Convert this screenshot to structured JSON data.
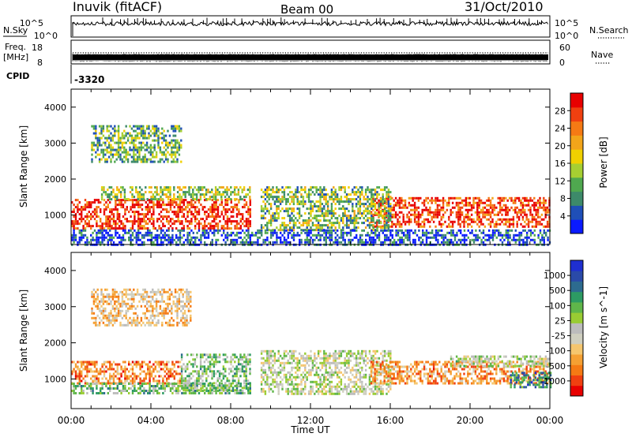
{
  "header": {
    "station": "Inuvik (fitACF)",
    "beam": "Beam 00",
    "date": "31/Oct/2010"
  },
  "strip_labels": {
    "nsky": "N.Sky",
    "nsearch": "N.Search",
    "freq_top": "Freq.",
    "freq_unit": "[MHz]",
    "nave": "Nave",
    "cpid": "CPID",
    "cpid_value": "-3320",
    "noise_tick_hi": "10^5",
    "noise_tick_lo": "10^0",
    "freq_tick_hi": "18",
    "freq_tick_lo": "8",
    "nave_tick_hi": "60",
    "nave_tick_lo": "0"
  },
  "axes": {
    "xlabel": "Time UT",
    "ylabel": "Slant Range [km]"
  },
  "colors": {
    "power": [
      "#0a1aff",
      "#1f4fb8",
      "#3d8a6a",
      "#4fa84f",
      "#a6cf32",
      "#f0d000",
      "#f2a51a",
      "#f57a14",
      "#f04010",
      "#e80000"
    ],
    "velocity": [
      "#e80000",
      "#f04010",
      "#f57a14",
      "#f5a033",
      "#f5c66e",
      "#cfcfbf",
      "#bcbcbc",
      "#99cc33",
      "#5fb64a",
      "#2d9b63",
      "#2d6b8f",
      "#2a4aa8",
      "#1f2fd0"
    ]
  },
  "chart_data": [
    {
      "type": "heatmap",
      "name": "power-panel",
      "xlabel": "Time UT",
      "ylabel": "Slant Range [km]",
      "x_ticks": [
        "00:00",
        "04:00",
        "08:00",
        "12:00",
        "16:00",
        "20:00",
        "00:00"
      ],
      "xlim": [
        0,
        24
      ],
      "ylim": [
        180,
        4500
      ],
      "y_ticks": [
        1000,
        2000,
        3000,
        4000
      ],
      "colorbar": {
        "label": "Power [dB]",
        "ticks": [
          "4",
          "8",
          "12",
          "16",
          "20",
          "24",
          "28"
        ],
        "range": [
          0,
          32
        ]
      },
      "scatter_bands": [
        {
          "t_start": 0.0,
          "t_end": 9.0,
          "r_min": 650,
          "r_max": 1450,
          "level": 0.9
        },
        {
          "t_start": 15.0,
          "t_end": 24.0,
          "r_min": 700,
          "r_max": 1500,
          "level": 0.85
        },
        {
          "t_start": 1.5,
          "t_end": 9.0,
          "r_min": 1450,
          "r_max": 1800,
          "level": 0.45
        },
        {
          "t_start": 9.5,
          "t_end": 16.0,
          "r_min": 600,
          "r_max": 1800,
          "level": 0.4
        },
        {
          "t_start": 0.0,
          "t_end": 24.0,
          "r_min": 200,
          "r_max": 600,
          "level": 0.15
        },
        {
          "t_start": 1.0,
          "t_end": 5.5,
          "r_min": 2500,
          "r_max": 3500,
          "level": 0.35
        }
      ]
    },
    {
      "type": "heatmap",
      "name": "velocity-panel",
      "xlabel": "Time UT",
      "ylabel": "Slant Range [km]",
      "x_ticks": [
        "00:00",
        "04:00",
        "08:00",
        "12:00",
        "16:00",
        "20:00",
        "00:00"
      ],
      "xlim": [
        0,
        24
      ],
      "ylim": [
        180,
        4500
      ],
      "y_ticks": [
        1000,
        2000,
        3000,
        4000
      ],
      "colorbar": {
        "label": "Velocity [m s^-1]",
        "ticks": [
          "1000",
          "500",
          "100",
          "25",
          "-25",
          "-100",
          "-500",
          "-1000"
        ],
        "range": [
          -1200,
          1200
        ]
      },
      "scatter_bands": [
        {
          "t_start": 0.0,
          "t_end": 5.5,
          "r_min": 900,
          "r_max": 1500,
          "level": -0.55
        },
        {
          "t_start": 0.0,
          "t_end": 9.0,
          "r_min": 600,
          "r_max": 900,
          "level": 0.25
        },
        {
          "t_start": 5.5,
          "t_end": 9.0,
          "r_min": 700,
          "r_max": 1700,
          "level": 0.2
        },
        {
          "t_start": 9.5,
          "t_end": 16.0,
          "r_min": 600,
          "r_max": 1800,
          "level": 0.0
        },
        {
          "t_start": 15.0,
          "t_end": 24.0,
          "r_min": 850,
          "r_max": 1500,
          "level": -0.5
        },
        {
          "t_start": 19.0,
          "t_end": 24.0,
          "r_min": 1350,
          "r_max": 1650,
          "level": 0.05
        },
        {
          "t_start": 22.0,
          "t_end": 24.0,
          "r_min": 800,
          "r_max": 1200,
          "level": 0.55
        },
        {
          "t_start": 1.0,
          "t_end": 6.0,
          "r_min": 2500,
          "r_max": 3500,
          "level": -0.3
        }
      ]
    }
  ]
}
